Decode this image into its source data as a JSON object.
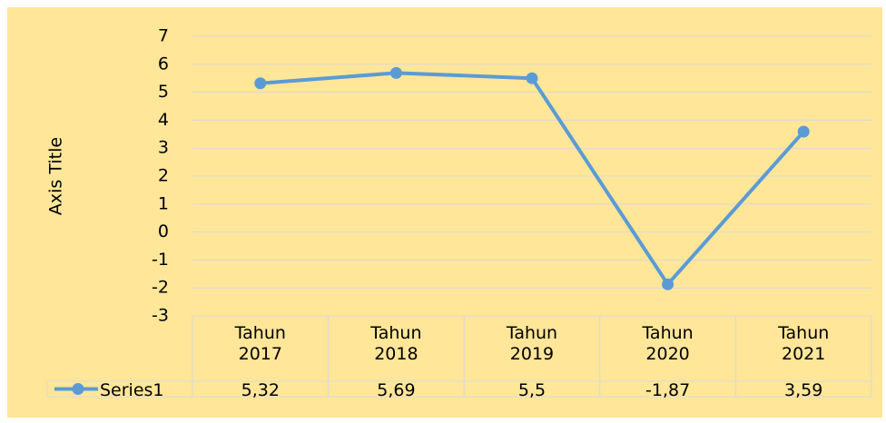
{
  "chart_data": {
    "type": "line",
    "y_axis_title": "Axis Title",
    "categories": [
      "Tahun 2017",
      "Tahun 2018",
      "Tahun 2019",
      "Tahun 2020",
      "Tahun 2021"
    ],
    "series": [
      {
        "name": "Series1",
        "color": "#5b9bd5",
        "values": [
          5.32,
          5.69,
          5.5,
          -1.87,
          3.59
        ],
        "value_labels": [
          "5,32",
          "5,69",
          "5,5",
          "-1,87",
          "3,59"
        ]
      }
    ],
    "ylim": [
      -3,
      7
    ],
    "yticks": [
      -3,
      -2,
      -1,
      0,
      1,
      2,
      3,
      4,
      5,
      6,
      7
    ],
    "grid": true,
    "data_table": true
  }
}
